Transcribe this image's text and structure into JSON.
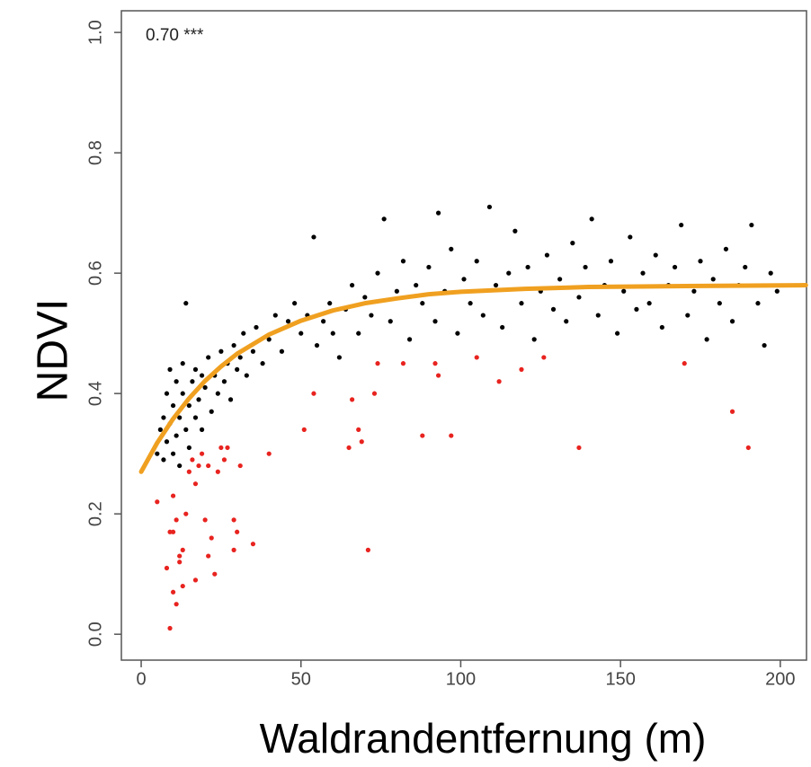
{
  "chart_data": {
    "type": "scatter",
    "annotation": "0.70 ***",
    "xlabel": "Waldrandentfernung (m)",
    "ylabel": "NDVI",
    "xlim": [
      -6.2,
      208.2
    ],
    "ylim": [
      -0.043,
      1.036
    ],
    "xticks": [
      0,
      50,
      100,
      150,
      200
    ],
    "yticks": [
      {
        "value": 0,
        "label": "0.0"
      },
      0.2,
      0.4,
      0.6,
      0.8,
      {
        "value": 1,
        "label": "1.0"
      }
    ],
    "series": [
      {
        "type": "points",
        "color": "#000000",
        "x": [
          5,
          6,
          7,
          7,
          8,
          8,
          9,
          9,
          10,
          10,
          11,
          11,
          12,
          12,
          13,
          13,
          14,
          14,
          15,
          15,
          16,
          17,
          17,
          18,
          19,
          19,
          20,
          21,
          22,
          23,
          24,
          25,
          26,
          27,
          28,
          29,
          30,
          31,
          32,
          33,
          35,
          36,
          38,
          40,
          42,
          44,
          46,
          48,
          50,
          52,
          54,
          55,
          57,
          59,
          60,
          62,
          64,
          66,
          68,
          70,
          72,
          74,
          76,
          78,
          80,
          82,
          84,
          86,
          88,
          90,
          92,
          93,
          95,
          97,
          99,
          101,
          103,
          105,
          107,
          109,
          111,
          113,
          115,
          117,
          119,
          121,
          123,
          125,
          127,
          129,
          131,
          133,
          135,
          137,
          139,
          141,
          143,
          145,
          147,
          149,
          151,
          153,
          155,
          157,
          159,
          161,
          163,
          165,
          167,
          169,
          171,
          173,
          175,
          177,
          179,
          181,
          183,
          185,
          187,
          189,
          191,
          193,
          195,
          197,
          199
        ],
        "values": [
          0.3,
          0.34,
          0.36,
          0.29,
          0.4,
          0.32,
          0.44,
          0.35,
          0.3,
          0.38,
          0.42,
          0.33,
          0.36,
          0.28,
          0.4,
          0.45,
          0.34,
          0.55,
          0.38,
          0.31,
          0.42,
          0.36,
          0.44,
          0.39,
          0.43,
          0.34,
          0.41,
          0.46,
          0.37,
          0.43,
          0.4,
          0.47,
          0.42,
          0.45,
          0.39,
          0.48,
          0.44,
          0.46,
          0.5,
          0.43,
          0.47,
          0.51,
          0.45,
          0.49,
          0.53,
          0.47,
          0.52,
          0.55,
          0.5,
          0.53,
          0.66,
          0.48,
          0.52,
          0.55,
          0.5,
          0.46,
          0.54,
          0.58,
          0.5,
          0.56,
          0.53,
          0.6,
          0.69,
          0.52,
          0.57,
          0.62,
          0.49,
          0.58,
          0.55,
          0.61,
          0.52,
          0.7,
          0.57,
          0.64,
          0.5,
          0.59,
          0.55,
          0.62,
          0.53,
          0.71,
          0.58,
          0.51,
          0.6,
          0.67,
          0.55,
          0.61,
          0.49,
          0.57,
          0.63,
          0.54,
          0.59,
          0.52,
          0.65,
          0.56,
          0.61,
          0.69,
          0.53,
          0.58,
          0.62,
          0.5,
          0.57,
          0.66,
          0.54,
          0.6,
          0.55,
          0.63,
          0.51,
          0.58,
          0.61,
          0.68,
          0.53,
          0.57,
          0.62,
          0.49,
          0.59,
          0.55,
          0.64,
          0.52,
          0.58,
          0.61,
          0.68,
          0.55,
          0.48,
          0.6,
          0.57
        ]
      },
      {
        "type": "points",
        "color": "#e8231f",
        "x": [
          5,
          8,
          9,
          9,
          10,
          10,
          10,
          11,
          11,
          12,
          12,
          13,
          13,
          14,
          15,
          16,
          17,
          17,
          18,
          19,
          20,
          21,
          21,
          22,
          23,
          24,
          25,
          26,
          27,
          29,
          29,
          30,
          31,
          35,
          40,
          51,
          54,
          65,
          66,
          68,
          69,
          71,
          73,
          74,
          82,
          88,
          92,
          93,
          97,
          105,
          112,
          119,
          126,
          137,
          170,
          185,
          190
        ],
        "values": [
          0.22,
          0.11,
          0.17,
          0.01,
          0.17,
          0.07,
          0.23,
          0.05,
          0.19,
          0.13,
          0.12,
          0.14,
          0.08,
          0.2,
          0.27,
          0.29,
          0.09,
          0.25,
          0.28,
          0.3,
          0.19,
          0.13,
          0.28,
          0.16,
          0.1,
          0.27,
          0.31,
          0.29,
          0.31,
          0.19,
          0.14,
          0.17,
          0.28,
          0.15,
          0.3,
          0.34,
          0.4,
          0.31,
          0.39,
          0.34,
          0.32,
          0.14,
          0.4,
          0.45,
          0.45,
          0.33,
          0.45,
          0.43,
          0.33,
          0.46,
          0.42,
          0.44,
          0.46,
          0.31,
          0.45,
          0.37,
          0.31
        ]
      },
      {
        "type": "line",
        "color": "#f0a020",
        "x": [
          0,
          5,
          10,
          15,
          20,
          25,
          30,
          40,
          50,
          60,
          70,
          80,
          90,
          100,
          120,
          140,
          160,
          180,
          208
        ],
        "values": [
          0.27,
          0.318,
          0.358,
          0.392,
          0.421,
          0.445,
          0.466,
          0.498,
          0.521,
          0.538,
          0.55,
          0.558,
          0.565,
          0.569,
          0.574,
          0.577,
          0.578,
          0.579,
          0.58
        ]
      }
    ]
  }
}
